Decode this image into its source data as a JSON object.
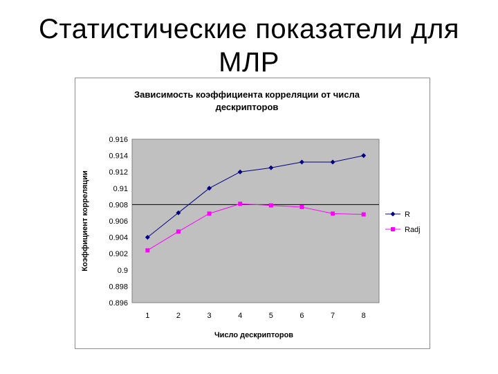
{
  "slide": {
    "title_line1": "Статистические показатели для",
    "title_line2": "МЛР"
  },
  "chart_data": {
    "type": "line",
    "title_line1": "Зависимость коэффициента корреляции от числа",
    "title_line2": "дескрипторов",
    "xlabel": "Число дескрипторов",
    "ylabel": "Коэффициент корреляции",
    "categories": [
      "1",
      "2",
      "3",
      "4",
      "5",
      "6",
      "7",
      "8"
    ],
    "ylim": [
      0.896,
      0.916
    ],
    "yticks": [
      "0.896",
      "0.898",
      "0.9",
      "0.902",
      "0.904",
      "0.906",
      "0.908",
      "0.91",
      "0.912",
      "0.914",
      "0.916"
    ],
    "reference_line_y": 0.908,
    "plot_background": "#c0c0c0",
    "legend_position": "right",
    "series": [
      {
        "name": "R",
        "color": "#000080",
        "marker": "diamond",
        "values": [
          0.904,
          0.907,
          0.91,
          0.912,
          0.9125,
          0.9132,
          0.9132,
          0.914
        ]
      },
      {
        "name": "Radj",
        "color": "#ff00ff",
        "marker": "square",
        "values": [
          0.9024,
          0.9047,
          0.9069,
          0.9081,
          0.9079,
          0.9077,
          0.9069,
          0.9068
        ]
      }
    ]
  }
}
